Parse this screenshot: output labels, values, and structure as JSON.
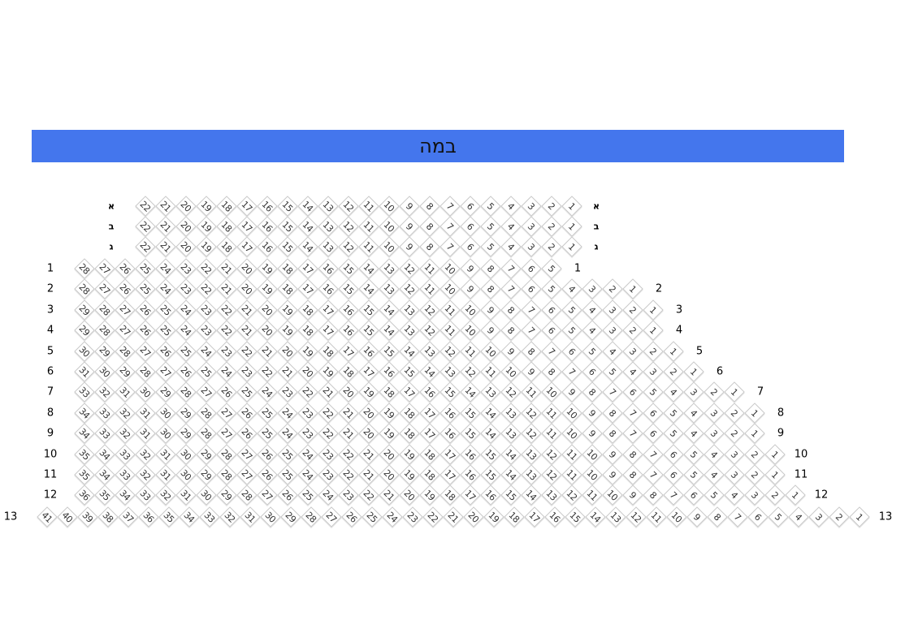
{
  "stage": {
    "label": "במה",
    "color": "#4476ed"
  },
  "rows": [
    {
      "label": "א",
      "seat_from": 22,
      "seat_to": 1
    },
    {
      "label": "ב",
      "seat_from": 22,
      "seat_to": 1
    },
    {
      "label": "ג",
      "seat_from": 22,
      "seat_to": 1
    },
    {
      "label": "1",
      "seat_from": 28,
      "seat_to": 5
    },
    {
      "label": "2",
      "seat_from": 28,
      "seat_to": 1
    },
    {
      "label": "3",
      "seat_from": 29,
      "seat_to": 1
    },
    {
      "label": "4",
      "seat_from": 29,
      "seat_to": 1
    },
    {
      "label": "5",
      "seat_from": 30,
      "seat_to": 1
    },
    {
      "label": "6",
      "seat_from": 31,
      "seat_to": 1
    },
    {
      "label": "7",
      "seat_from": 33,
      "seat_to": 1
    },
    {
      "label": "8",
      "seat_from": 34,
      "seat_to": 1
    },
    {
      "label": "9",
      "seat_from": 34,
      "seat_to": 1
    },
    {
      "label": "10",
      "seat_from": 35,
      "seat_to": 1
    },
    {
      "label": "11",
      "seat_from": 35,
      "seat_to": 1
    },
    {
      "label": "12",
      "seat_from": 36,
      "seat_to": 1
    },
    {
      "label": "13",
      "seat_from": 41,
      "seat_to": 1
    }
  ]
}
